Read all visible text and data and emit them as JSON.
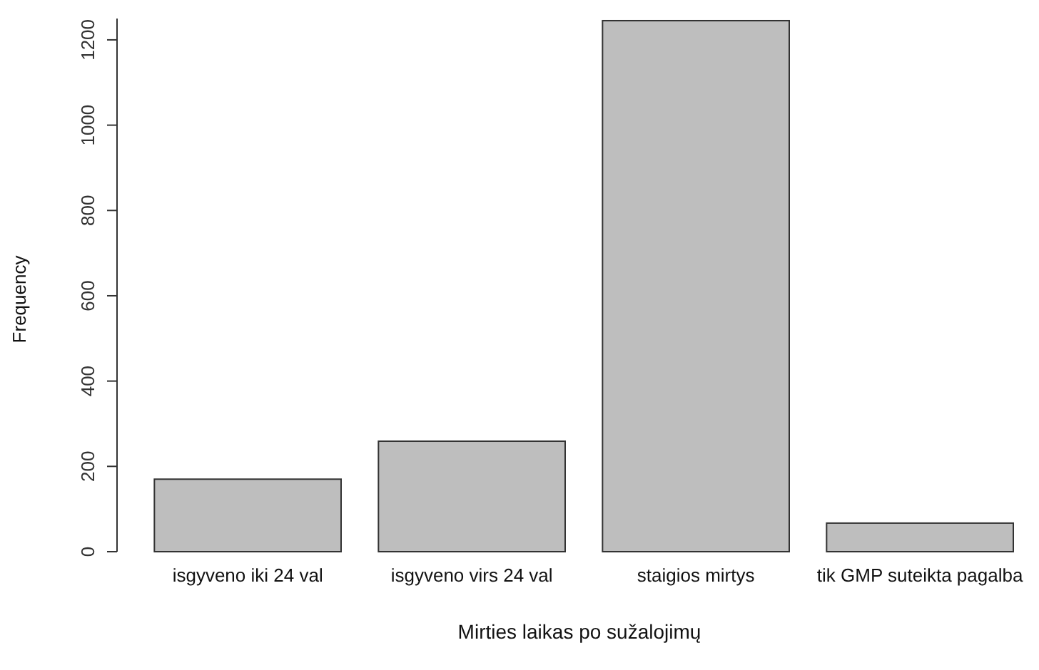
{
  "chart_data": {
    "type": "bar",
    "xlabel": "Mirties laikas po sužalojimų",
    "ylabel": "Frequency",
    "categories": [
      "isgyveno iki 24 val",
      "isgyveno virs 24 val",
      "staigios mirtys",
      "tik GMP suteikta pagalba"
    ],
    "values": [
      170,
      259,
      1245,
      67
    ],
    "color": "#bebebe",
    "ylim": [
      0,
      1250
    ],
    "yticks": [
      0,
      200,
      400,
      600,
      800,
      1000,
      1200
    ],
    "grid": false
  }
}
